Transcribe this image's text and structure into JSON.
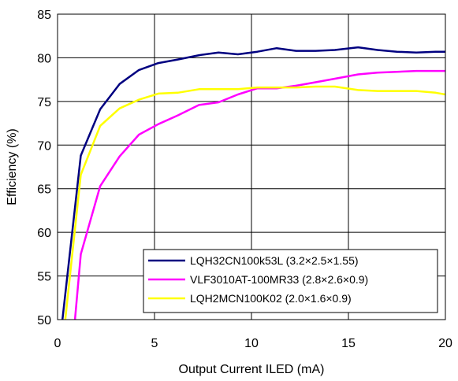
{
  "chart_data": {
    "type": "line",
    "xlabel": "Output Current ILED (mA)",
    "ylabel": "Efficiency  (%)",
    "xlim": [
      0,
      20
    ],
    "ylim": [
      50,
      85
    ],
    "xticks": [
      0,
      5,
      10,
      15,
      20
    ],
    "yticks": [
      50,
      55,
      60,
      65,
      70,
      75,
      80,
      85
    ],
    "x_tick_labels": [
      "0",
      "5",
      "10",
      "15",
      "20"
    ],
    "y_tick_labels": [
      "50",
      "55",
      "60",
      "65",
      "70",
      "75",
      "80",
      "85"
    ],
    "grid": true,
    "legend_position": "bottom-right",
    "series": [
      {
        "name": "LQH32CN100k53L (3.2×2.5×1.55)",
        "color": "#000080",
        "x": [
          0.25,
          1.2,
          2.2,
          3.2,
          4.2,
          5.2,
          6.2,
          7.3,
          8.3,
          9.3,
          10.3,
          11.3,
          12.3,
          13.3,
          14.3,
          15.5,
          16.5,
          17.5,
          18.5,
          19.5,
          20
        ],
        "y": [
          50.0,
          68.8,
          74.1,
          77.0,
          78.6,
          79.4,
          79.8,
          80.3,
          80.6,
          80.4,
          80.7,
          81.1,
          80.8,
          80.8,
          80.9,
          81.2,
          80.9,
          80.7,
          80.6,
          80.7,
          80.7
        ]
      },
      {
        "name": "VLF3010AT-100MR33 (2.8×2.6×0.9)",
        "color": "#ff00ff",
        "x": [
          0.9,
          1.2,
          2.2,
          3.2,
          4.2,
          5.2,
          6.2,
          7.3,
          8.3,
          9.3,
          10.3,
          11.3,
          12.3,
          13.3,
          14.3,
          15.5,
          16.5,
          17.5,
          18.5,
          19.5,
          20
        ],
        "y": [
          50.0,
          57.5,
          65.3,
          68.7,
          71.2,
          72.4,
          73.4,
          74.6,
          74.9,
          75.8,
          76.5,
          76.5,
          76.8,
          77.2,
          77.6,
          78.1,
          78.3,
          78.4,
          78.5,
          78.5,
          78.5
        ]
      },
      {
        "name": "LQH2MCN100K02 (2.0×1.6×0.9)",
        "color": "#ffff00",
        "x": [
          0.4,
          1.2,
          2.2,
          3.2,
          4.2,
          5.2,
          6.2,
          7.3,
          8.3,
          9.3,
          10.3,
          11.3,
          12.3,
          13.3,
          14.3,
          15.5,
          16.5,
          17.5,
          18.5,
          19.5,
          20
        ],
        "y": [
          50.0,
          66.6,
          72.2,
          74.2,
          75.2,
          75.9,
          76.0,
          76.4,
          76.4,
          76.4,
          76.6,
          76.6,
          76.6,
          76.7,
          76.7,
          76.3,
          76.2,
          76.2,
          76.2,
          76.0,
          75.8
        ]
      }
    ]
  }
}
